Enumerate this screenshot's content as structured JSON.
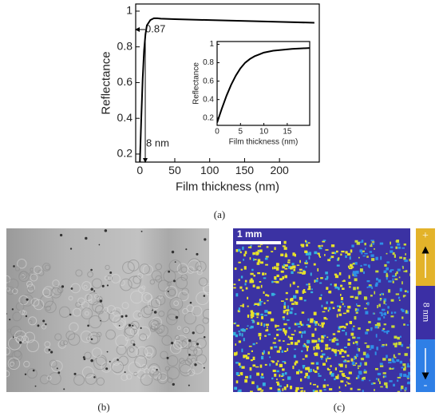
{
  "chart_data": [
    {
      "type": "line",
      "xlabel": "Film thickness (nm)",
      "ylabel": "Reflectance",
      "x": [
        0,
        2,
        4,
        6,
        8,
        10,
        15,
        20,
        25,
        30,
        50,
        100,
        150,
        200,
        250
      ],
      "series": [
        {
          "color": "#000000",
          "values": [
            0.15,
            0.4,
            0.62,
            0.78,
            0.87,
            0.92,
            0.95,
            0.96,
            0.96,
            0.958,
            0.955,
            0.95,
            0.945,
            0.94,
            0.935
          ]
        }
      ],
      "xlim": [
        -6,
        257
      ],
      "ylim": [
        0.155,
        1.04
      ],
      "xticks": [
        0,
        50,
        100,
        150,
        200
      ],
      "yticks": [
        0.2,
        0.4,
        0.6,
        0.8,
        1
      ],
      "annotations": [
        "0.87",
        "8 nm"
      ]
    },
    {
      "type": "line",
      "xlabel": "Film thickness (nm)",
      "ylabel": "Reflectance",
      "x": [
        0,
        1,
        2,
        3,
        4,
        5,
        6,
        7,
        8,
        9,
        10,
        12,
        14,
        16,
        18,
        19.8
      ],
      "series": [
        {
          "color": "#000000",
          "values": [
            0.15,
            0.3,
            0.44,
            0.56,
            0.66,
            0.74,
            0.8,
            0.84,
            0.87,
            0.89,
            0.91,
            0.93,
            0.94,
            0.95,
            0.955,
            0.96
          ]
        }
      ],
      "xlim": [
        0,
        19.8
      ],
      "ylim": [
        0.12,
        1.03
      ],
      "xticks": [
        0,
        5,
        10,
        15
      ],
      "yticks": [
        0.2,
        0.4,
        0.6,
        0.8,
        1
      ]
    }
  ],
  "panel_labels": [
    "(a)",
    "(b)",
    "(c)"
  ],
  "panel_c": {
    "scale_bar": "1 mm",
    "colorbar": {
      "top": "+",
      "middle": "8 nm",
      "bottom": "-"
    }
  }
}
